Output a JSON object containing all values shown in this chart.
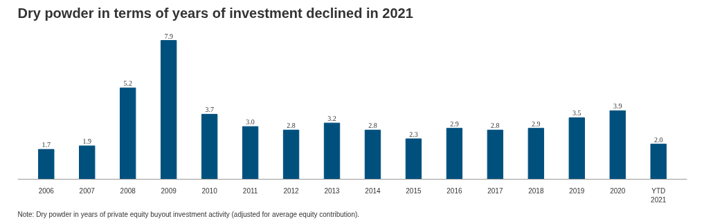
{
  "chart_data": {
    "type": "bar",
    "title": "Dry powder in terms of years of investment declined in 2021",
    "categories": [
      "2006",
      "2007",
      "2008",
      "2009",
      "2010",
      "2011",
      "2012",
      "2013",
      "2014",
      "2015",
      "2016",
      "2017",
      "2018",
      "2019",
      "2020",
      "YTD\n2021"
    ],
    "values": [
      1.7,
      1.9,
      5.2,
      7.9,
      3.7,
      3.0,
      2.8,
      3.2,
      2.8,
      2.3,
      2.9,
      2.8,
      2.9,
      3.5,
      3.9,
      2.0
    ],
    "color": "#00507e",
    "value_labels": [
      "1.7",
      "1.9",
      "5.2",
      "7.9",
      "3.7",
      "3.0",
      "2.8",
      "3.2",
      "2.8",
      "2.3",
      "2.9",
      "2.8",
      "2.9",
      "3.5",
      "3.9",
      "2.0"
    ],
    "grid": false,
    "annotations": [
      "Note: Dry powder in years of private equity buyout investment activity (adjusted for average equity contribution)."
    ]
  }
}
